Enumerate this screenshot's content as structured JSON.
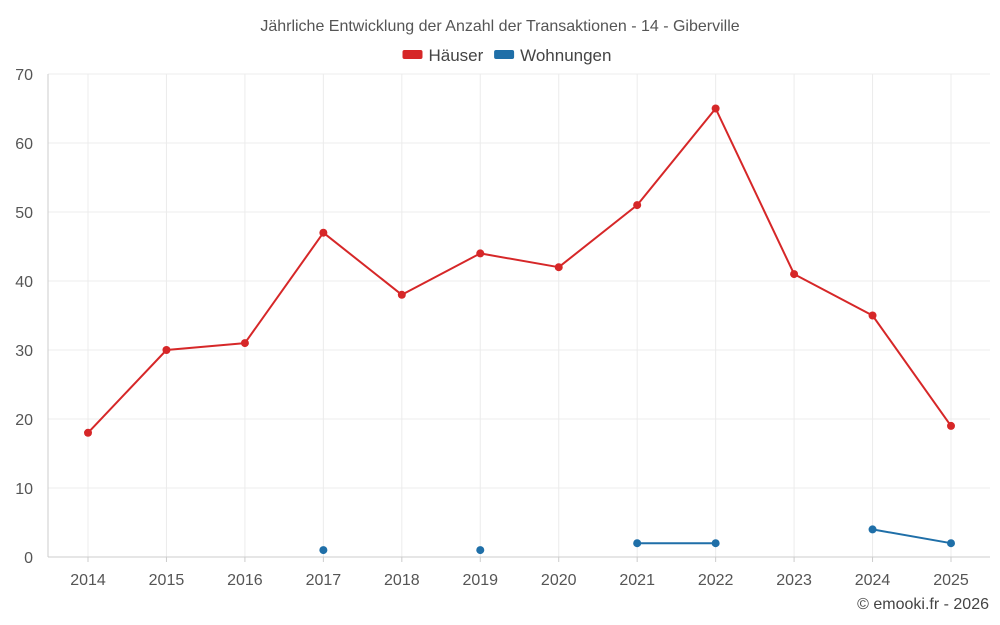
{
  "chart_data": {
    "type": "line",
    "title": "Jährliche Entwicklung der Anzahl der Transaktionen - 14 - Giberville",
    "xlabel": "",
    "ylabel": "",
    "categories": [
      "2014",
      "2015",
      "2016",
      "2017",
      "2018",
      "2019",
      "2020",
      "2021",
      "2022",
      "2023",
      "2024",
      "2025"
    ],
    "ylim": [
      0,
      70
    ],
    "yticks": [
      0,
      10,
      20,
      30,
      40,
      50,
      60,
      70
    ],
    "grid": true,
    "legend_position": "top-center",
    "series": [
      {
        "name": "Häuser",
        "color": "#d62728",
        "values": [
          18,
          30,
          31,
          47,
          38,
          44,
          42,
          51,
          65,
          41,
          35,
          19
        ]
      },
      {
        "name": "Wohnungen",
        "color": "#1f6fa8",
        "values": [
          null,
          null,
          null,
          1,
          null,
          1,
          null,
          2,
          2,
          null,
          4,
          2
        ]
      }
    ]
  },
  "credit": "© emooki.fr - 2026"
}
